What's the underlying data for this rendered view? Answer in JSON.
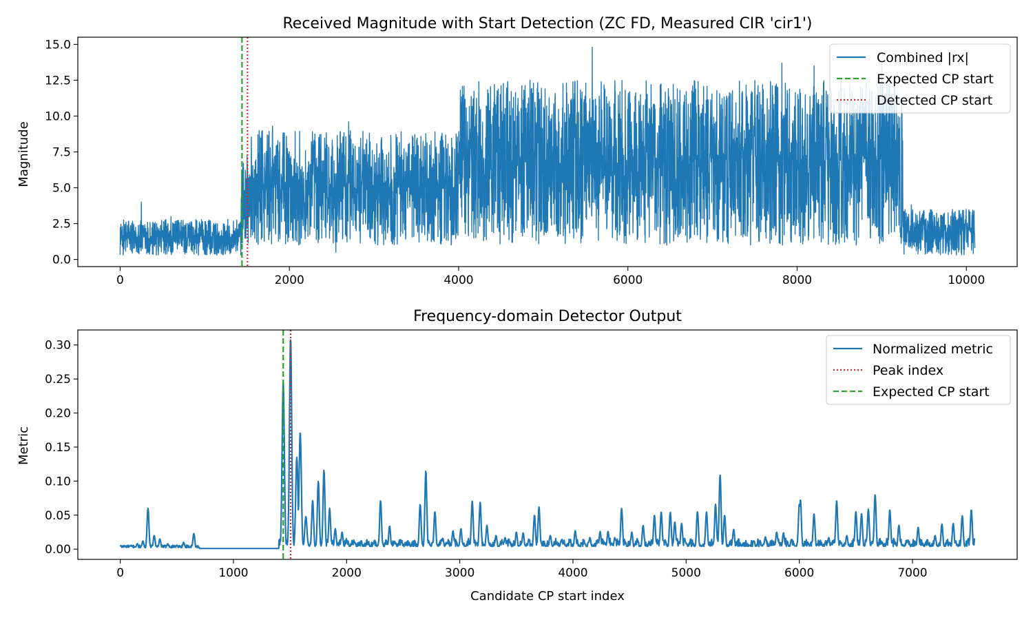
{
  "chart_data": [
    {
      "type": "line",
      "title": "Received Magnitude with Start Detection (ZC FD, Measured CIR 'cir1')",
      "xlabel": "",
      "ylabel": "Magnitude",
      "xlim": [
        -500,
        10600
      ],
      "ylim": [
        -0.5,
        15.5
      ],
      "x_ticks": [
        0,
        2000,
        4000,
        6000,
        8000,
        10000
      ],
      "x_tick_labels": [
        "0",
        "2000",
        "4000",
        "6000",
        "8000",
        "10000"
      ],
      "y_ticks": [
        0.0,
        2.5,
        5.0,
        7.5,
        10.0,
        12.5,
        15.0
      ],
      "y_tick_labels": [
        "0.0",
        "2.5",
        "5.0",
        "7.5",
        "10.0",
        "12.5",
        "15.0"
      ],
      "legend_position": "top-right",
      "series": [
        {
          "name": "Combined |rx|",
          "color": "#1f77b4",
          "style": "solid",
          "x_range": [
            0,
            10100
          ],
          "envelope_segments": [
            {
              "x_start": 0,
              "x_end": 1430,
              "low": 0.3,
              "high": 2.8,
              "peaks": [
                [
                  250,
                  4.0
                ],
                [
                  600,
                  3.0
                ]
              ]
            },
            {
              "x_start": 1430,
              "x_end": 1550,
              "low": 1.0,
              "high": 7.0,
              "peaks": [
                [
                  1500,
                  7.2
                ]
              ]
            },
            {
              "x_start": 1550,
              "x_end": 4000,
              "low": 1.0,
              "high": 9.0,
              "peaks": [
                [
                  1800,
                  9.3
                ],
                [
                  2550,
                  0.5
                ],
                [
                  2700,
                  9.6
                ]
              ]
            },
            {
              "x_start": 4000,
              "x_end": 9250,
              "low": 1.0,
              "high": 12.5,
              "peaks": [
                [
                  5580,
                  14.8
                ],
                [
                  7820,
                  13.7
                ],
                [
                  8200,
                  13.5
                ],
                [
                  9000,
                  13.7
                ]
              ]
            },
            {
              "x_start": 9250,
              "x_end": 10100,
              "low": 0.3,
              "high": 3.5,
              "peaks": [
                [
                  9350,
                  3.8
                ]
              ]
            }
          ]
        },
        {
          "name": "Expected CP start",
          "color": "#2ca02c",
          "style": "dashed",
          "x": 1440
        },
        {
          "name": "Detected CP start",
          "color": "#d62728",
          "style": "dotted",
          "x": 1505
        }
      ]
    },
    {
      "type": "line",
      "title": "Frequency-domain Detector Output",
      "xlabel": "Candidate CP start index",
      "ylabel": "Metric",
      "xlim": [
        -375,
        7925
      ],
      "ylim": [
        -0.015,
        0.322
      ],
      "x_ticks": [
        0,
        1000,
        2000,
        3000,
        4000,
        5000,
        6000,
        7000
      ],
      "x_tick_labels": [
        "0",
        "1000",
        "2000",
        "3000",
        "4000",
        "5000",
        "6000",
        "7000"
      ],
      "y_ticks": [
        0.0,
        0.05,
        0.1,
        0.15,
        0.2,
        0.25,
        0.3
      ],
      "y_tick_labels": [
        "0.00",
        "0.05",
        "0.10",
        "0.15",
        "0.20",
        "0.25",
        "0.30"
      ],
      "legend_position": "top-right",
      "series": [
        {
          "name": "Normalized metric",
          "color": "#1f77b4",
          "style": "solid",
          "x_range": [
            0,
            7550
          ],
          "peaks": [
            [
              150,
              0.008
            ],
            [
              200,
              0.012
            ],
            [
              245,
              0.06
            ],
            [
              300,
              0.02
            ],
            [
              350,
              0.015
            ],
            [
              420,
              0.008
            ],
            [
              500,
              0.006
            ],
            [
              560,
              0.01
            ],
            [
              650,
              0.023
            ],
            [
              1440,
              0.245
            ],
            [
              1505,
              0.31
            ],
            [
              1560,
              0.135
            ],
            [
              1590,
              0.172
            ],
            [
              1640,
              0.048
            ],
            [
              1700,
              0.072
            ],
            [
              1750,
              0.1
            ],
            [
              1800,
              0.116
            ],
            [
              1850,
              0.06
            ],
            [
              1900,
              0.03
            ],
            [
              1960,
              0.025
            ],
            [
              2300,
              0.071
            ],
            [
              2380,
              0.034
            ],
            [
              2650,
              0.066
            ],
            [
              2700,
              0.115
            ],
            [
              2780,
              0.055
            ],
            [
              2850,
              0.016
            ],
            [
              2940,
              0.027
            ],
            [
              3010,
              0.03
            ],
            [
              3110,
              0.071
            ],
            [
              3180,
              0.069
            ],
            [
              3240,
              0.035
            ],
            [
              3320,
              0.02
            ],
            [
              3400,
              0.017
            ],
            [
              3500,
              0.025
            ],
            [
              3560,
              0.024
            ],
            [
              3660,
              0.05
            ],
            [
              3700,
              0.062
            ],
            [
              3800,
              0.02
            ],
            [
              3900,
              0.014
            ],
            [
              4020,
              0.027
            ],
            [
              4150,
              0.017
            ],
            [
              4240,
              0.026
            ],
            [
              4310,
              0.026
            ],
            [
              4370,
              0.017
            ],
            [
              4430,
              0.06
            ],
            [
              4520,
              0.025
            ],
            [
              4620,
              0.035
            ],
            [
              4720,
              0.05
            ],
            [
              4780,
              0.055
            ],
            [
              4860,
              0.054
            ],
            [
              4900,
              0.04
            ],
            [
              4960,
              0.038
            ],
            [
              5100,
              0.055
            ],
            [
              5180,
              0.055
            ],
            [
              5260,
              0.066
            ],
            [
              5300,
              0.109
            ],
            [
              5340,
              0.05
            ],
            [
              5420,
              0.029
            ],
            [
              5600,
              0.012
            ],
            [
              5700,
              0.018
            ],
            [
              5800,
              0.025
            ],
            [
              5860,
              0.024
            ],
            [
              5930,
              0.014
            ],
            [
              6000,
              0.066
            ],
            [
              6010,
              0.073
            ],
            [
              6130,
              0.052
            ],
            [
              6260,
              0.017
            ],
            [
              6330,
              0.071
            ],
            [
              6420,
              0.02
            ],
            [
              6500,
              0.055
            ],
            [
              6550,
              0.052
            ],
            [
              6610,
              0.059
            ],
            [
              6670,
              0.08
            ],
            [
              6800,
              0.058
            ],
            [
              6880,
              0.035
            ],
            [
              7050,
              0.032
            ],
            [
              7200,
              0.02
            ],
            [
              7260,
              0.037
            ],
            [
              7360,
              0.038
            ],
            [
              7440,
              0.049
            ],
            [
              7520,
              0.058
            ]
          ]
        },
        {
          "name": "Peak index",
          "color": "#d62728",
          "style": "dotted",
          "x": 1505
        },
        {
          "name": "Expected CP start",
          "color": "#2ca02c",
          "style": "dashed",
          "x": 1440
        }
      ]
    }
  ]
}
